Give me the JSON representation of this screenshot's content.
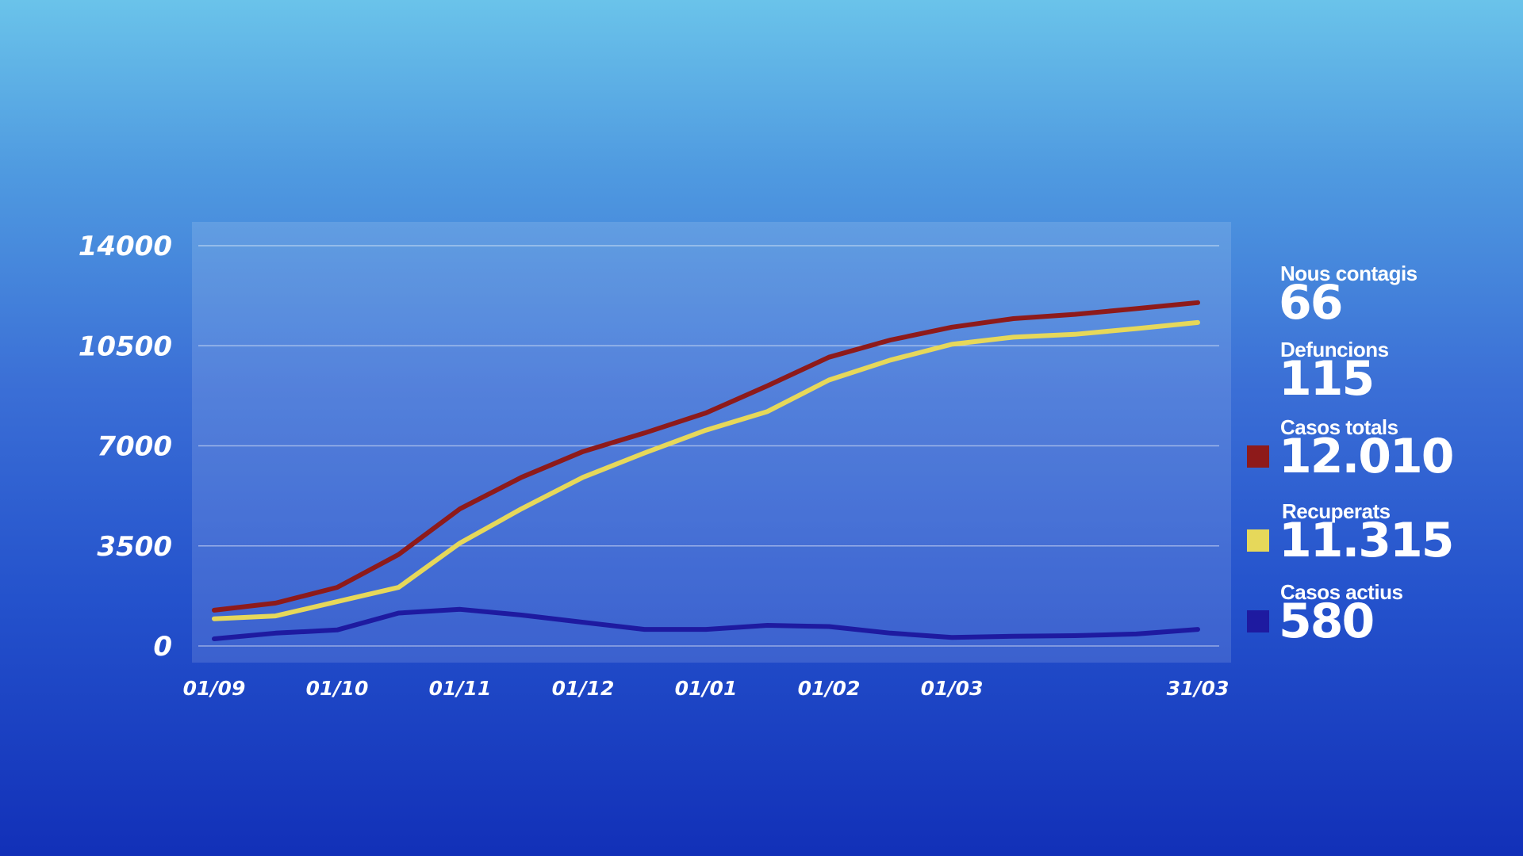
{
  "stats": {
    "nous_contagis": {
      "label": "Nous contagis",
      "value": "66"
    },
    "defuncions": {
      "label": "Defuncions",
      "value": "115"
    },
    "casos_totals": {
      "label": "Casos totals",
      "value": "12.010",
      "color": "#8e1a1a"
    },
    "recuperats": {
      "label": "Recuperats",
      "value": "11.315",
      "color": "#e6d85a"
    },
    "casos_actius": {
      "label": "Casos actius",
      "value": "580",
      "color": "#1e1aa0"
    }
  },
  "chart_data": {
    "type": "line",
    "x": [
      "01/09",
      "15/09",
      "01/10",
      "15/10",
      "01/11",
      "15/11",
      "01/12",
      "15/12",
      "01/01",
      "15/01",
      "01/02",
      "15/02",
      "01/03",
      "15/03",
      "20/03",
      "25/03",
      "31/03"
    ],
    "x_tick_labels": [
      "01/09",
      "01/10",
      "01/11",
      "01/12",
      "01/01",
      "01/02",
      "01/03",
      "31/03"
    ],
    "y_ticks": [
      0,
      3500,
      7000,
      10500,
      14000
    ],
    "ylim": [
      0,
      14000
    ],
    "grid": true,
    "series": [
      {
        "key": "casos_totals",
        "color": "#8e1a1a",
        "values": [
          1250,
          1500,
          2050,
          3200,
          4800,
          5900,
          6800,
          7450,
          8150,
          9100,
          10100,
          10700,
          11150,
          11450,
          11600,
          11800,
          12010
        ]
      },
      {
        "key": "recuperats",
        "color": "#e6d85a",
        "values": [
          950,
          1050,
          1550,
          2050,
          3600,
          4800,
          5900,
          6750,
          7550,
          8200,
          9300,
          10000,
          10550,
          10800,
          10900,
          11100,
          11315
        ]
      },
      {
        "key": "casos_actius",
        "color": "#1e1aa0",
        "values": [
          250,
          450,
          560,
          1150,
          1280,
          1080,
          830,
          580,
          580,
          720,
          680,
          450,
          300,
          340,
          360,
          420,
          580
        ]
      }
    ]
  }
}
